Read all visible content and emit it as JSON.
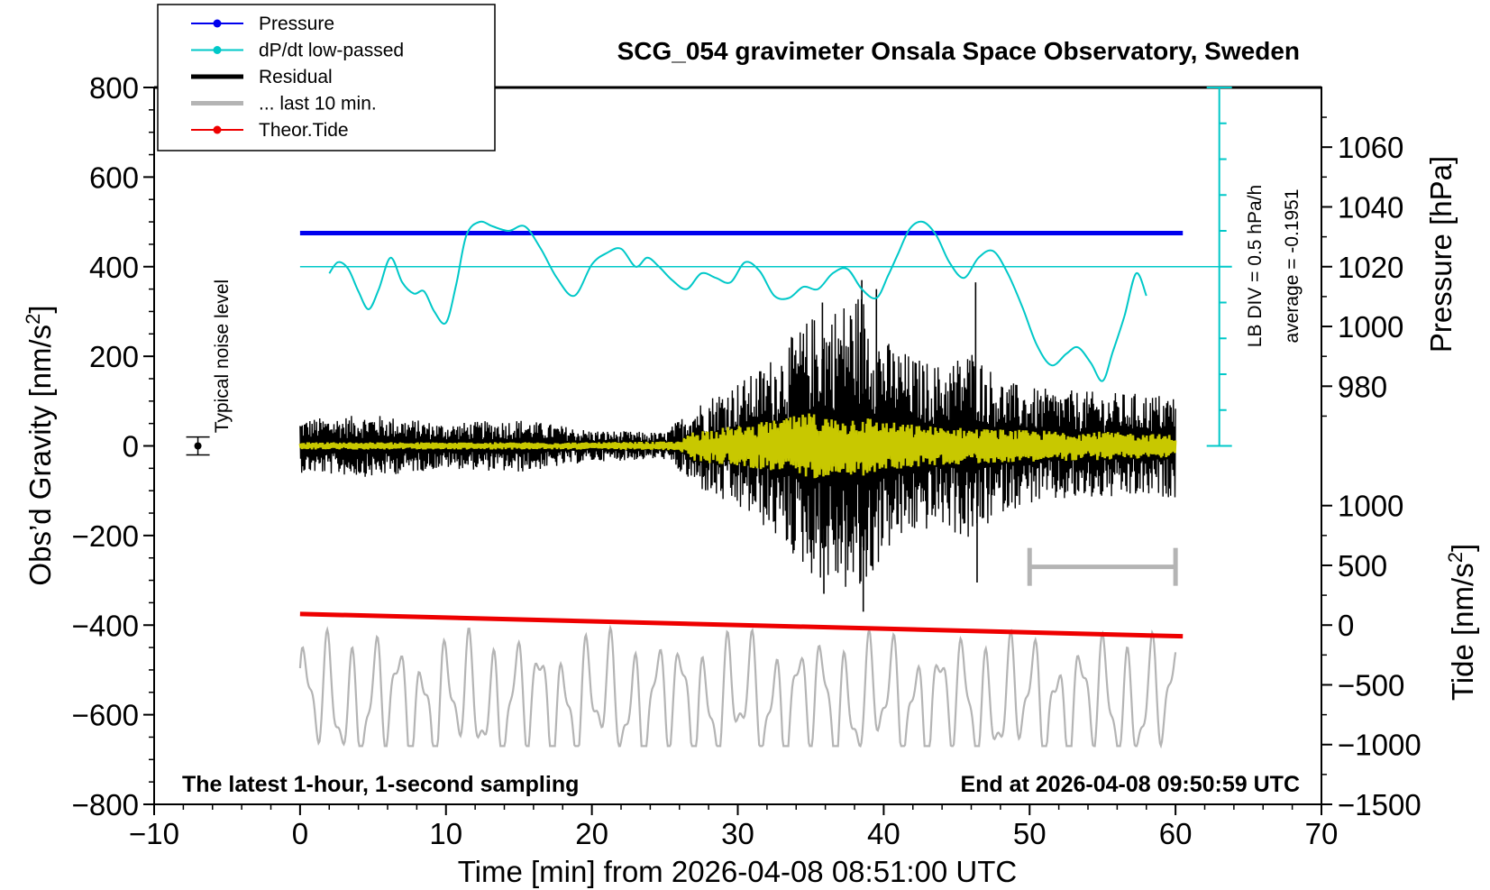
{
  "chart_data": {
    "type": "line",
    "title": "SCG_054 gravimeter Onsala Space Observatory, Sweden",
    "xlabel": "Time [min] from 2026-04-08 08:51:00 UTC",
    "ylabel_left": "Obs’d Gravity [nm/s²]",
    "ylabel_left_parts": {
      "main": "Obs’d Gravity [nm/s",
      "sup": "2",
      "end": "]"
    },
    "ylabel_right_top": "Pressure [hPa]",
    "ylabel_right_bottom": "Tide [nm/s²]",
    "ylabel_right_bottom_parts": {
      "main": "Tide [nm/s",
      "sup": "2",
      "end": "]"
    },
    "xlim": [
      -10,
      70
    ],
    "ylim": [
      -800,
      800
    ],
    "x_ticks": [
      "−10",
      "0",
      "10",
      "20",
      "30",
      "40",
      "50",
      "60",
      "70"
    ],
    "x_tick_values": [
      -10,
      0,
      10,
      20,
      30,
      40,
      50,
      60,
      70
    ],
    "y_ticks": [
      "−800",
      "−600",
      "−400",
      "−200",
      "0",
      "200",
      "400",
      "600",
      "800"
    ],
    "y_tick_values": [
      -800,
      -600,
      -400,
      -200,
      0,
      200,
      400,
      600,
      800
    ],
    "pressure_axis": {
      "ticks": [
        "980",
        "1000",
        "1020",
        "1040",
        "1060"
      ],
      "values": [
        980,
        1000,
        1020,
        1040,
        1060
      ],
      "ref_hpa": 1020,
      "ref_gravity": 400,
      "gravity_per_hpa": 6.67
    },
    "tide_axis": {
      "ticks": [
        "−1500",
        "−1000",
        "−500",
        "0",
        "500",
        "1000"
      ],
      "values": [
        -1500,
        -1000,
        -500,
        0,
        500,
        1000
      ],
      "ref_tide": -1500,
      "ref_gravity": -800,
      "gravity_per_tide": 0.2667
    },
    "legend": [
      {
        "label": "Pressure",
        "color": "#0000ee",
        "style": "line-dot"
      },
      {
        "label": "dP/dt low-passed",
        "color": "#00c8c8",
        "style": "line-dot"
      },
      {
        "label": "Residual",
        "color": "#000000",
        "style": "thick"
      },
      {
        "label": "... last 10 min.",
        "color": "#b4b4b4",
        "style": "thick"
      },
      {
        "label": "Theor.Tide",
        "color": "#ee0000",
        "style": "line-dot"
      }
    ],
    "annotations": {
      "noise_label": "Typical noise level",
      "noise_marker": {
        "x": -7,
        "y": 0,
        "err": 20
      },
      "lb_div": "LB DIV = 0.5 hPa/h",
      "average": "average = -0.1951",
      "bottom_left": "The latest 1-hour, 1-second sampling",
      "bottom_right": "End at 2026-04-08 09:50:59 UTC",
      "scale_bar": {
        "x0": 50,
        "x1": 60,
        "y": -270
      }
    },
    "series": [
      {
        "name": "Pressure",
        "color": "#0000ee",
        "kind": "line",
        "x": [
          0,
          60.5
        ],
        "y": [
          475,
          475
        ]
      },
      {
        "name": "dP/dt low-passed",
        "color": "#00c8c8",
        "kind": "line",
        "baseline_y": 400,
        "baseline_x": [
          0,
          63
        ],
        "x": [
          2,
          2.6,
          3.3,
          4,
          4.7,
          5.4,
          6.2,
          7,
          7.8,
          8.5,
          9.2,
          10,
          10.7,
          11.4,
          12.3,
          13.2,
          14.3,
          15.4,
          16.5,
          17.6,
          18.8,
          20,
          21,
          22,
          23,
          23.8,
          24.6,
          25.5,
          26.5,
          27.5,
          28.5,
          29.5,
          30.5,
          31.5,
          32.5,
          33.5,
          34.5,
          35.5,
          36.5,
          37.5,
          38.5,
          39.5,
          40.3,
          41,
          41.8,
          42.7,
          43.6,
          44.5,
          45.5,
          46.5,
          47.5,
          48.5,
          49.5,
          50.5,
          51.5,
          52.5,
          53.3,
          54.2,
          55,
          55.7,
          56.5,
          57.3,
          58
        ],
        "y": [
          385,
          410,
          395,
          345,
          305,
          350,
          420,
          365,
          340,
          345,
          300,
          275,
          360,
          470,
          500,
          490,
          480,
          490,
          440,
          375,
          335,
          405,
          430,
          440,
          400,
          420,
          400,
          370,
          350,
          385,
          375,
          365,
          410,
          390,
          335,
          330,
          355,
          350,
          385,
          395,
          350,
          330,
          380,
          430,
          485,
          500,
          470,
          410,
          375,
          420,
          435,
          385,
          310,
          225,
          180,
          205,
          220,
          185,
          145,
          210,
          290,
          385,
          335
        ]
      },
      {
        "name": "Residual",
        "color": "#000000",
        "kind": "noise",
        "x_range": [
          0,
          60
        ],
        "envelope_x": [
          0,
          5,
          10,
          15,
          20,
          25,
          27,
          29,
          31,
          33,
          35,
          37,
          38.5,
          40,
          42,
          44,
          46,
          48,
          50,
          55,
          60
        ],
        "envelope_y": [
          60,
          70,
          50,
          60,
          35,
          30,
          90,
          130,
          160,
          220,
          290,
          320,
          350,
          240,
          200,
          180,
          220,
          150,
          130,
          120,
          115
        ],
        "spikes": [
          {
            "x": 35.8,
            "y": 320
          },
          {
            "x": 35.9,
            "y": -330
          },
          {
            "x": 38.5,
            "y": 370
          },
          {
            "x": 38.6,
            "y": -370
          },
          {
            "x": 46.3,
            "y": 365
          },
          {
            "x": 46.4,
            "y": -305
          },
          {
            "x": 33.7,
            "y": -220
          },
          {
            "x": 39.5,
            "y": 350
          }
        ]
      },
      {
        "name": "Residual yellow overlay",
        "color": "#c8c800",
        "kind": "noise",
        "x_range": [
          0,
          60
        ],
        "envelope_x": [
          0,
          10,
          20,
          26,
          27,
          30,
          33,
          35,
          37,
          38.5,
          40,
          43,
          46,
          50,
          55,
          60
        ],
        "envelope_y": [
          8,
          8,
          8,
          10,
          35,
          45,
          60,
          75,
          60,
          70,
          55,
          45,
          40,
          35,
          32,
          25
        ]
      },
      {
        "name": "... last 10 min.",
        "color": "#b4b4b4",
        "kind": "wave",
        "x_range": [
          0,
          60
        ],
        "center_y": -570,
        "amplitude": 135,
        "y_min": -670,
        "y_max": -370
      },
      {
        "name": "Theor.Tide",
        "color": "#ee0000",
        "kind": "line",
        "x": [
          0,
          60.5
        ],
        "y": [
          -375,
          -425
        ]
      }
    ]
  }
}
